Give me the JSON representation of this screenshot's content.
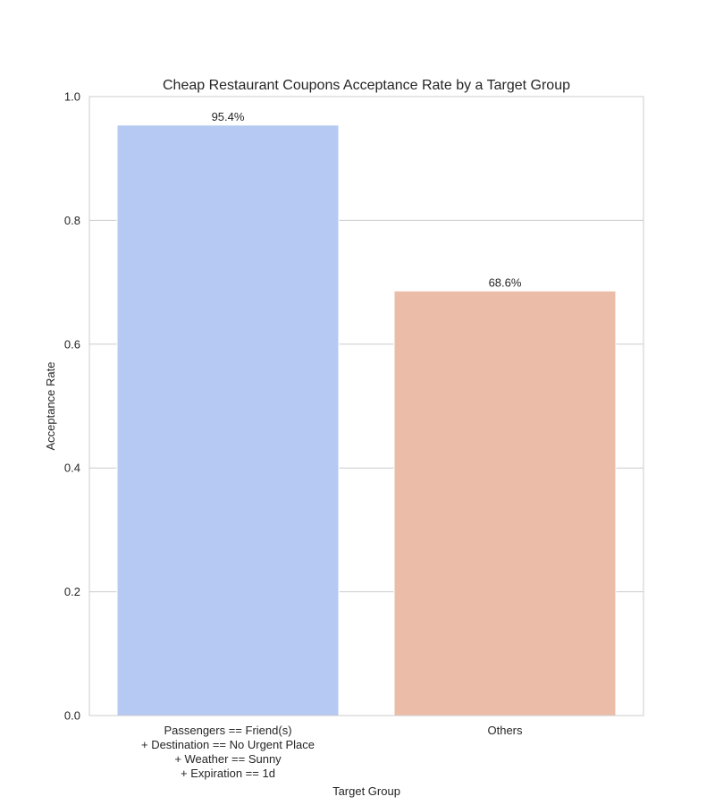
{
  "chart_data": {
    "type": "bar",
    "title": "Cheap Restaurant Coupons Acceptance Rate by a Target Group",
    "xlabel": "Target Group",
    "ylabel": "Acceptance Rate",
    "ylim": [
      0,
      1.0
    ],
    "yticks": [
      0.0,
      0.2,
      0.4,
      0.6,
      0.8,
      1.0
    ],
    "ytick_labels": [
      "0.0",
      "0.2",
      "0.4",
      "0.6",
      "0.8",
      "1.0"
    ],
    "grid": true,
    "categories": [
      [
        "Passengers == Friend(s)",
        "+ Destination == No Urgent Place",
        "+ Weather == Sunny",
        "+ Expiration == 1d"
      ],
      [
        "Others"
      ]
    ],
    "values": [
      0.954,
      0.686
    ],
    "value_labels": [
      "95.4%",
      "68.6%"
    ],
    "colors": [
      "#b5c9f2",
      "#ebbca7"
    ]
  }
}
